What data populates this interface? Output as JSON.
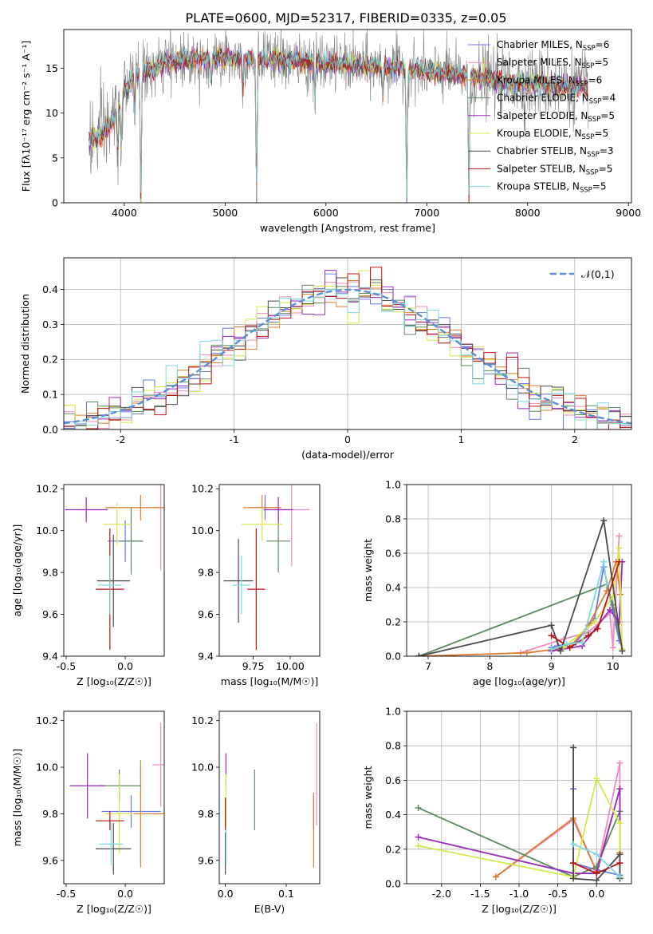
{
  "figure_title": "PLATE=0600, MJD=52317, FIBERID=0335, z=0.05",
  "colors": {
    "Chabrier MILES": "#6a79e0",
    "Salpeter MILES": "#ee8cbf",
    "Kroupa MILES": "#e07b2e",
    "Chabrier ELODIE": "#5f8a60",
    "Salpeter ELODIE": "#9b2bbf",
    "Kroupa ELODIE": "#d5e84a",
    "Chabrier STELIB": "#4a4a4a",
    "Salpeter STELIB": "#b81414",
    "Kroupa STELIB": "#7fd8e0",
    "data": "#808080",
    "normal": "#5b8fd6"
  },
  "chart_data": [
    {
      "id": "spectrum",
      "type": "line",
      "title": "PLATE=0600, MJD=52317, FIBERID=0335, z=0.05",
      "xlabel": "wavelength [Angstrom, rest frame]",
      "ylabel": "Flux [fλ10⁻¹⁷ erg cm⁻² s⁻¹ A⁻¹]",
      "xlim": [
        3400,
        9030
      ],
      "ylim": [
        0,
        19.3
      ],
      "xticks": [
        4000,
        5000,
        6000,
        7000,
        8000,
        9000
      ],
      "yticks": [
        0,
        5,
        10,
        15
      ],
      "legend_position": "top-right",
      "legend": [
        "Chabrier MILES, N_SSP=6",
        "Salpeter MILES, N_SSP=5",
        "Kroupa MILES, N_SSP=6",
        "Chabrier ELODIE, N_SSP=4",
        "Salpeter ELODIE, N_SSP=5",
        "Kroupa ELODIE, N_SSP=5",
        "Chabrier STELIB, N_SSP=3",
        "Salpeter STELIB, N_SSP=5",
        "Kroupa STELIB, N_SSP=5"
      ],
      "continuum": {
        "x": [
          3650,
          3700,
          3800,
          3900,
          3950,
          4000,
          4100,
          4200,
          4300,
          4400,
          4500,
          4700,
          5000,
          5200,
          5500,
          5800,
          6000,
          6300,
          6600,
          6800,
          7000,
          7200,
          7400,
          7600,
          7800,
          8000,
          8200,
          8400,
          8600
        ],
        "y": [
          7.3,
          6.9,
          7.8,
          9.3,
          10.6,
          12.5,
          14.0,
          14.7,
          14.7,
          15.6,
          15.8,
          16.0,
          16.1,
          16.0,
          15.9,
          15.6,
          15.5,
          15.3,
          15.0,
          14.9,
          14.6,
          14.4,
          14.1,
          13.8,
          13.5,
          13.3,
          13.2,
          13.0,
          12.9
        ]
      },
      "absorption_lines": [
        [
          3934,
          4.5
        ],
        [
          3969,
          5.0
        ],
        [
          4102,
          4.0
        ],
        [
          4164,
          14.8
        ],
        [
          4861,
          2.5
        ],
        [
          5176,
          3.0
        ],
        [
          5311,
          15.4
        ],
        [
          5893,
          3.5
        ],
        [
          6564,
          3.0
        ],
        [
          6801,
          14.8
        ],
        [
          7418,
          14.0
        ]
      ],
      "grid": false
    },
    {
      "id": "residual-histogram",
      "type": "line",
      "xlabel": "(data-model)/error",
      "ylabel": "Normed distribution",
      "xlim": [
        -2.5,
        2.5
      ],
      "ylim": [
        0,
        0.49
      ],
      "xticks": [
        -2,
        -1,
        0,
        1,
        2
      ],
      "yticks": [
        0.0,
        0.1,
        0.2,
        0.3,
        0.4
      ],
      "bin_width": 0.1,
      "legend": [
        "𝒩(0,1)"
      ],
      "legend_position": "top-right",
      "grid": true
    },
    {
      "id": "age-vs-metallicity",
      "type": "scatter",
      "xlabel": "Z [log₁₀(Z/Z☉)]",
      "ylabel": "age  [log₁₀(age/yr)]",
      "xlim": [
        -0.52,
        0.33
      ],
      "ylim": [
        9.4,
        10.22
      ],
      "xticks": [
        -0.5,
        0.0
      ],
      "yticks": [
        9.4,
        9.6,
        9.8,
        10.0,
        10.2
      ],
      "points": [
        {
          "series": "Chabrier MILES",
          "x": 0.0,
          "y": 9.95,
          "xerr": 0.15,
          "yerr": 0.1
        },
        {
          "series": "Salpeter MILES",
          "x": 0.3,
          "y": 10.11,
          "xerr": 0.45,
          "yerr": 0.3
        },
        {
          "series": "Kroupa MILES",
          "x": 0.13,
          "y": 10.11,
          "xerr": 0.3,
          "yerr": 0.06
        },
        {
          "series": "Chabrier ELODIE",
          "x": 0.05,
          "y": 9.95,
          "xerr": 0.1,
          "yerr": 0.16
        },
        {
          "series": "Salpeter ELODIE",
          "x": -0.33,
          "y": 10.1,
          "xerr": 0.18,
          "yerr": 0.06
        },
        {
          "series": "Kroupa ELODIE",
          "x": -0.07,
          "y": 10.03,
          "xerr": 0.12,
          "yerr": 0.1
        },
        {
          "series": "Chabrier STELIB",
          "x": -0.1,
          "y": 9.76,
          "xerr": 0.14,
          "yerr": 0.22
        },
        {
          "series": "Salpeter STELIB",
          "x": -0.13,
          "y": 9.72,
          "xerr": 0.12,
          "yerr": 0.29
        },
        {
          "series": "Kroupa STELIB",
          "x": -0.13,
          "y": 9.74,
          "xerr": 0.1,
          "yerr": 0.14
        }
      ]
    },
    {
      "id": "age-vs-mass",
      "type": "scatter",
      "xlabel": "mass [log₁₀(M/M☉)]",
      "ylabel": "",
      "xlim": [
        9.52,
        10.2
      ],
      "ylim": [
        9.4,
        10.22
      ],
      "xticks": [
        9.75,
        10.0
      ],
      "yticks": [
        9.4,
        9.6,
        9.8,
        10.0,
        10.2
      ],
      "points": [
        {
          "series": "Chabrier MILES",
          "x": 9.83,
          "y": 10.11,
          "xerr": 0.1,
          "yerr": 0.06
        },
        {
          "series": "Salpeter MILES",
          "x": 10.01,
          "y": 10.1,
          "xerr": 0.12,
          "yerr": 0.27
        },
        {
          "series": "Kroupa MILES",
          "x": 9.81,
          "y": 10.11,
          "xerr": 0.13,
          "yerr": 0.06
        },
        {
          "series": "Chabrier ELODIE",
          "x": 9.92,
          "y": 9.95,
          "xerr": 0.08,
          "yerr": 0.15
        },
        {
          "series": "Salpeter ELODIE",
          "x": 9.92,
          "y": 10.1,
          "xerr": 0.1,
          "yerr": 0.06
        },
        {
          "series": "Kroupa ELODIE",
          "x": 9.81,
          "y": 10.03,
          "xerr": 0.14,
          "yerr": 0.08
        },
        {
          "series": "Chabrier STELIB",
          "x": 9.65,
          "y": 9.76,
          "xerr": 0.1,
          "yerr": 0.2
        },
        {
          "series": "Salpeter STELIB",
          "x": 9.77,
          "y": 9.72,
          "xerr": 0.06,
          "yerr": 0.29
        },
        {
          "series": "Kroupa STELIB",
          "x": 9.67,
          "y": 9.74,
          "xerr": 0.06,
          "yerr": 0.14
        }
      ]
    },
    {
      "id": "mass-weight-vs-age",
      "type": "line",
      "xlabel": "age  [log₁₀(age/yr)]",
      "ylabel": "mass weight",
      "xlim": [
        6.65,
        10.3
      ],
      "ylim": [
        0,
        1.0
      ],
      "xticks": [
        7,
        8,
        9,
        10
      ],
      "yticks": [
        0.0,
        0.2,
        0.4,
        0.6,
        0.8,
        1.0
      ],
      "grid": true,
      "series": [
        {
          "name": "Chabrier MILES",
          "x": [
            9.0,
            9.1,
            9.4,
            9.7,
            9.85,
            10.1
          ],
          "y": [
            0.05,
            0.06,
            0.08,
            0.22,
            0.52,
            0.09
          ]
        },
        {
          "name": "Salpeter MILES",
          "x": [
            8.5,
            9.2,
            9.6,
            9.95,
            10.0,
            10.1
          ],
          "y": [
            0.02,
            0.1,
            0.14,
            0.25,
            0.05,
            0.7
          ]
        },
        {
          "name": "Kroupa MILES",
          "x": [
            6.85,
            8.6,
            9.3,
            9.6,
            9.9,
            10.05,
            10.12
          ],
          "y": [
            0.0,
            0.02,
            0.05,
            0.18,
            0.38,
            0.55,
            0.36
          ]
        },
        {
          "name": "Chabrier ELODIE",
          "x": [
            6.85,
            9.9,
            10.0,
            10.15
          ],
          "y": [
            0.0,
            0.42,
            0.3,
            0.04
          ]
        },
        {
          "name": "Salpeter ELODIE",
          "x": [
            9.0,
            9.5,
            9.95,
            10.1,
            10.15
          ],
          "y": [
            0.03,
            0.06,
            0.27,
            0.2,
            0.55
          ]
        },
        {
          "name": "Kroupa ELODIE",
          "x": [
            9.2,
            9.7,
            10.0,
            10.1,
            10.15
          ],
          "y": [
            0.05,
            0.2,
            0.35,
            0.63,
            0.04
          ]
        },
        {
          "name": "Chabrier STELIB",
          "x": [
            6.85,
            9.0,
            9.15,
            9.85,
            10.15
          ],
          "y": [
            0.0,
            0.18,
            0.03,
            0.79,
            0.03
          ]
        },
        {
          "name": "Salpeter STELIB",
          "x": [
            9.0,
            9.3,
            9.6,
            9.75,
            10.1
          ],
          "y": [
            0.12,
            0.05,
            0.12,
            0.16,
            0.55
          ]
        },
        {
          "name": "Kroupa STELIB",
          "x": [
            9.0,
            9.25,
            9.5,
            9.85,
            9.9
          ],
          "y": [
            0.04,
            0.07,
            0.08,
            0.55,
            0.42
          ]
        }
      ]
    },
    {
      "id": "mass-vs-metallicity",
      "type": "scatter",
      "xlabel": "Z [log₁₀(Z/Z☉)]",
      "ylabel": "mass [log₁₀(M/M☉)]",
      "xlim": [
        -0.52,
        0.33
      ],
      "ylim": [
        9.5,
        10.24
      ],
      "xticks": [
        -0.5,
        0.0
      ],
      "yticks": [
        9.6,
        9.8,
        10.0,
        10.2
      ],
      "points": [
        {
          "series": "Chabrier MILES",
          "x": 0.05,
          "y": 9.81,
          "xerr": 0.25,
          "yerr": 0.07
        },
        {
          "series": "Salpeter MILES",
          "x": 0.3,
          "y": 10.01,
          "xerr": 0.07,
          "yerr": 0.18
        },
        {
          "series": "Kroupa MILES",
          "x": 0.13,
          "y": 9.8,
          "xerr": 0.2,
          "yerr": 0.23
        },
        {
          "series": "Chabrier ELODIE",
          "x": -0.05,
          "y": 9.92,
          "xerr": 0.18,
          "yerr": 0.07
        },
        {
          "series": "Salpeter ELODIE",
          "x": -0.32,
          "y": 9.92,
          "xerr": 0.15,
          "yerr": 0.14
        },
        {
          "series": "Kroupa ELODIE",
          "x": -0.05,
          "y": 9.8,
          "xerr": 0.12,
          "yerr": 0.17
        },
        {
          "series": "Chabrier STELIB",
          "x": -0.1,
          "y": 9.65,
          "xerr": 0.15,
          "yerr": 0.11
        },
        {
          "series": "Salpeter STELIB",
          "x": -0.13,
          "y": 9.77,
          "xerr": 0.12,
          "yerr": 0.04
        },
        {
          "series": "Kroupa STELIB",
          "x": -0.12,
          "y": 9.67,
          "xerr": 0.1,
          "yerr": 0.09
        }
      ]
    },
    {
      "id": "mass-vs-extinction",
      "type": "scatter",
      "xlabel": "E(B-V)",
      "ylabel": "",
      "xlim": [
        -0.01,
        0.155
      ],
      "ylim": [
        9.5,
        10.24
      ],
      "xticks": [
        0.0,
        0.1
      ],
      "yticks": [
        9.6,
        9.8,
        10.0,
        10.2
      ],
      "points": [
        {
          "series": "Chabrier MILES",
          "x": 0.145,
          "y": 9.81,
          "xerr": 0,
          "yerr": 0.07
        },
        {
          "series": "Salpeter MILES",
          "x": 0.15,
          "y": 9.97,
          "xerr": 0,
          "yerr": 0.22
        },
        {
          "series": "Kroupa MILES",
          "x": 0.145,
          "y": 9.73,
          "xerr": 0,
          "yerr": 0.16
        },
        {
          "series": "Chabrier ELODIE",
          "x": 0.048,
          "y": 9.86,
          "xerr": 0,
          "yerr": 0.13
        },
        {
          "series": "Salpeter ELODIE",
          "x": 0.001,
          "y": 9.99,
          "xerr": 0,
          "yerr": 0.07
        },
        {
          "series": "Kroupa ELODIE",
          "x": 0.001,
          "y": 9.85,
          "xerr": 0,
          "yerr": 0.12
        },
        {
          "series": "Chabrier STELIB",
          "x": 0.0,
          "y": 9.63,
          "xerr": 0,
          "yerr": 0.09
        },
        {
          "series": "Salpeter STELIB",
          "x": 0.0,
          "y": 9.8,
          "xerr": 0,
          "yerr": 0.07
        },
        {
          "series": "Kroupa STELIB",
          "x": 0.001,
          "y": 9.66,
          "xerr": 0,
          "yerr": 0.08
        }
      ]
    },
    {
      "id": "mass-weight-vs-metallicity",
      "type": "line",
      "xlabel": "Z [log₁₀(Z/Z☉)]",
      "ylabel": "mass weight",
      "xlim": [
        -2.45,
        0.45
      ],
      "ylim": [
        0,
        1.0
      ],
      "xticks": [
        -2.0,
        -1.5,
        -1.0,
        -0.5,
        0.0
      ],
      "yticks": [
        0.0,
        0.2,
        0.4,
        0.6,
        0.8,
        1.0
      ],
      "grid": true,
      "series": [
        {
          "name": "Chabrier MILES",
          "x": [
            -0.3,
            -0.3,
            0.0,
            0.3
          ],
          "y": [
            0.55,
            0.12,
            0.08,
            0.05
          ]
        },
        {
          "name": "Salpeter MILES",
          "x": [
            -1.3,
            -0.3,
            0.0,
            0.3,
            0.3
          ],
          "y": [
            0.04,
            0.37,
            0.07,
            0.7,
            0.04
          ]
        },
        {
          "name": "Kroupa MILES",
          "x": [
            -1.3,
            -0.3,
            0.0,
            0.3,
            0.3
          ],
          "y": [
            0.04,
            0.38,
            0.07,
            0.55,
            0.18
          ]
        },
        {
          "name": "Chabrier ELODIE",
          "x": [
            -2.3,
            -0.3,
            0.0,
            0.3,
            0.3
          ],
          "y": [
            0.44,
            0.04,
            0.1,
            0.42,
            0.03
          ]
        },
        {
          "name": "Salpeter ELODIE",
          "x": [
            -2.3,
            -0.3,
            0.0,
            0.3,
            0.3
          ],
          "y": [
            0.27,
            0.06,
            0.06,
            0.55,
            0.12
          ]
        },
        {
          "name": "Kroupa ELODIE",
          "x": [
            -2.3,
            -0.3,
            0.0,
            0.3,
            0.3
          ],
          "y": [
            0.22,
            0.04,
            0.61,
            0.35,
            0.04
          ]
        },
        {
          "name": "Chabrier STELIB",
          "x": [
            -0.3,
            -0.3,
            0.0,
            0.3,
            0.3
          ],
          "y": [
            0.79,
            0.03,
            0.02,
            0.17,
            0.03
          ]
        },
        {
          "name": "Salpeter STELIB",
          "x": [
            -0.3,
            0.0,
            0.3
          ],
          "y": [
            0.12,
            0.06,
            0.12
          ]
        },
        {
          "name": "Kroupa STELIB",
          "x": [
            -0.3,
            0.0,
            0.3
          ],
          "y": [
            0.23,
            0.17,
            0.04
          ]
        }
      ]
    }
  ]
}
